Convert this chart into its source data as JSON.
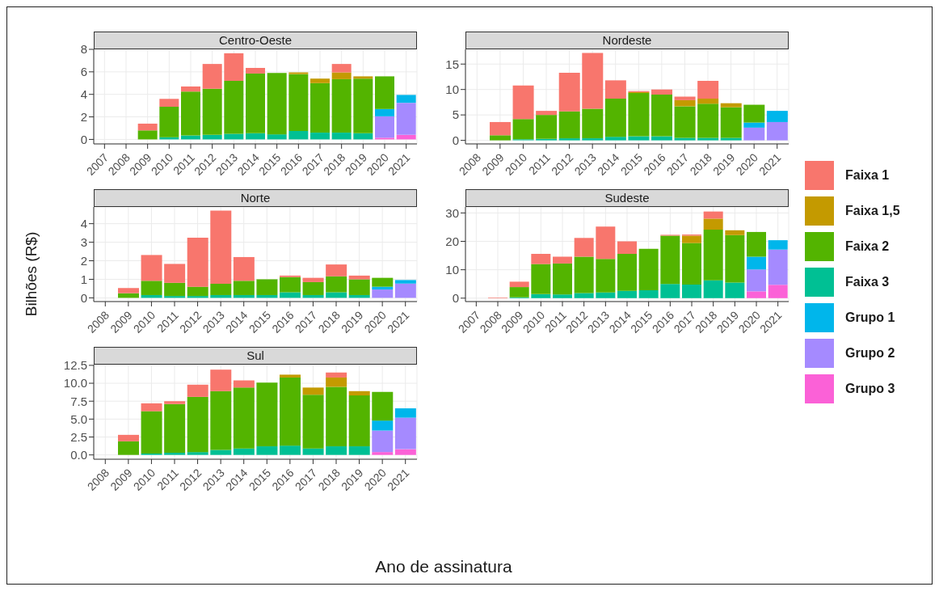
{
  "chart_data": [
    {
      "type": "bar",
      "title": "Centro-Oeste",
      "stacked": true,
      "grid": true,
      "legend": "right",
      "ylabel": "Bilhões (R$)",
      "categories": [
        "2007",
        "2008",
        "2009",
        "2010",
        "2011",
        "2012",
        "2013",
        "2014",
        "2015",
        "2016",
        "2017",
        "2018",
        "2019",
        "2020",
        "2021"
      ],
      "ylim": [
        -0.4,
        8
      ],
      "yticks": [
        0,
        2,
        4,
        6,
        8
      ],
      "series": [
        {
          "name": "Grupo 3",
          "color": "#fb61d7",
          "values": [
            null,
            null,
            null,
            null,
            null,
            null,
            null,
            null,
            null,
            null,
            null,
            null,
            null,
            0.15,
            0.4
          ]
        },
        {
          "name": "Grupo 2",
          "color": "#a58aff",
          "values": [
            null,
            null,
            null,
            null,
            null,
            null,
            null,
            null,
            null,
            null,
            null,
            null,
            null,
            1.9,
            2.85
          ]
        },
        {
          "name": "Grupo 1",
          "color": "#00b6eb",
          "values": [
            null,
            null,
            null,
            null,
            null,
            null,
            null,
            null,
            null,
            null,
            null,
            null,
            null,
            0.65,
            0.7
          ]
        },
        {
          "name": "Faixa 3",
          "color": "#00c094",
          "values": [
            null,
            null,
            null,
            0.2,
            0.35,
            0.4,
            0.5,
            0.55,
            0.45,
            0.75,
            0.6,
            0.6,
            0.55,
            null,
            null
          ]
        },
        {
          "name": "Faixa 2",
          "color": "#53b400",
          "values": [
            null,
            null,
            0.8,
            2.7,
            3.9,
            4.1,
            4.7,
            5.3,
            5.45,
            5.05,
            4.4,
            4.75,
            4.85,
            2.9,
            null
          ]
        },
        {
          "name": "Faixa 1,5",
          "color": "#c49a00",
          "values": [
            null,
            null,
            null,
            null,
            null,
            null,
            null,
            null,
            null,
            0.15,
            0.4,
            0.6,
            0.2,
            null,
            null
          ]
        },
        {
          "name": "Faixa 1",
          "color": "#f8766d",
          "values": [
            null,
            null,
            0.6,
            0.7,
            0.45,
            2.2,
            2.45,
            0.5,
            null,
            null,
            null,
            0.75,
            null,
            null,
            null
          ]
        }
      ]
    },
    {
      "type": "bar",
      "title": "Nordeste",
      "stacked": true,
      "grid": true,
      "categories": [
        "2008",
        "2009",
        "2010",
        "2011",
        "2012",
        "2013",
        "2014",
        "2015",
        "2016",
        "2017",
        "2018",
        "2019",
        "2020",
        "2021"
      ],
      "ylim": [
        -0.7,
        17.9
      ],
      "yticks": [
        0,
        5,
        10,
        15
      ],
      "series": [
        {
          "color": "#a58aff",
          "values": [
            null,
            null,
            null,
            null,
            null,
            null,
            null,
            null,
            null,
            null,
            null,
            null,
            2.5,
            3.6
          ]
        },
        {
          "color": "#00b6eb",
          "values": [
            null,
            null,
            null,
            null,
            null,
            null,
            null,
            null,
            null,
            null,
            null,
            null,
            1.0,
            2.2
          ]
        },
        {
          "color": "#00c094",
          "values": [
            null,
            null,
            0.2,
            0.3,
            0.4,
            0.4,
            0.7,
            0.8,
            0.8,
            0.5,
            0.5,
            0.5,
            null,
            null
          ]
        },
        {
          "color": "#53b400",
          "values": [
            null,
            1.0,
            4.0,
            4.7,
            5.3,
            5.8,
            7.5,
            8.5,
            8.2,
            6.2,
            6.7,
            6.0,
            3.5,
            null
          ]
        },
        {
          "color": "#c49a00",
          "values": [
            null,
            null,
            null,
            null,
            null,
            null,
            null,
            0.2,
            null,
            1.2,
            1.0,
            0.8,
            null,
            null
          ]
        },
        {
          "color": "#f8766d",
          "values": [
            null,
            2.6,
            6.6,
            0.8,
            7.6,
            11.0,
            3.6,
            0.2,
            1.0,
            0.7,
            3.5,
            null,
            null,
            null
          ]
        }
      ]
    },
    {
      "type": "bar",
      "title": "Norte",
      "stacked": true,
      "grid": true,
      "categories": [
        "2008",
        "2009",
        "2010",
        "2011",
        "2012",
        "2013",
        "2014",
        "2015",
        "2016",
        "2017",
        "2018",
        "2019",
        "2020",
        "2021"
      ],
      "ylim": [
        -0.2,
        4.9
      ],
      "yticks": [
        0,
        1,
        2,
        3,
        4
      ],
      "series": [
        {
          "color": "#a58aff",
          "values": [
            null,
            null,
            null,
            null,
            null,
            null,
            null,
            null,
            null,
            null,
            null,
            null,
            0.45,
            0.77
          ]
        },
        {
          "color": "#00b6eb",
          "values": [
            null,
            null,
            null,
            null,
            null,
            null,
            null,
            null,
            null,
            null,
            null,
            null,
            0.15,
            0.19
          ]
        },
        {
          "color": "#00c094",
          "values": [
            null,
            null,
            0.15,
            0.1,
            0.1,
            0.15,
            0.15,
            0.15,
            0.3,
            0.15,
            0.3,
            0.15,
            null,
            null
          ]
        },
        {
          "color": "#53b400",
          "values": [
            null,
            0.25,
            0.77,
            0.71,
            0.5,
            0.61,
            0.77,
            0.85,
            0.82,
            0.7,
            0.86,
            0.85,
            0.48,
            null
          ]
        },
        {
          "color": "#f8766d",
          "values": [
            null,
            0.28,
            1.39,
            1.02,
            2.64,
            3.94,
            1.28,
            null,
            0.08,
            0.23,
            0.64,
            0.2,
            null,
            null
          ]
        }
      ]
    },
    {
      "type": "bar",
      "title": "Sudeste",
      "stacked": true,
      "grid": true,
      "categories": [
        "2007",
        "2008",
        "2009",
        "2010",
        "2011",
        "2012",
        "2013",
        "2014",
        "2015",
        "2016",
        "2017",
        "2018",
        "2019",
        "2020",
        "2021"
      ],
      "ylim": [
        -1.2,
        32.1
      ],
      "yticks": [
        0,
        10,
        20,
        30
      ],
      "series": [
        {
          "color": "#fb61d7",
          "values": [
            null,
            null,
            null,
            null,
            null,
            null,
            null,
            null,
            null,
            null,
            null,
            null,
            null,
            2.4,
            4.7
          ]
        },
        {
          "color": "#a58aff",
          "values": [
            null,
            null,
            null,
            null,
            null,
            null,
            null,
            null,
            null,
            null,
            null,
            null,
            null,
            7.7,
            12.4
          ]
        },
        {
          "color": "#00b6eb",
          "values": [
            null,
            null,
            null,
            null,
            null,
            null,
            null,
            null,
            null,
            null,
            null,
            null,
            null,
            4.5,
            3.3
          ]
        },
        {
          "color": "#00c094",
          "values": [
            null,
            null,
            0.3,
            1.4,
            1.3,
            1.8,
            2.0,
            2.6,
            2.8,
            5.0,
            4.8,
            6.3,
            5.5,
            null,
            null
          ]
        },
        {
          "color": "#53b400",
          "values": [
            null,
            null,
            3.6,
            10.6,
            10.9,
            12.8,
            11.8,
            13.0,
            14.6,
            17.0,
            14.6,
            17.8,
            16.7,
            8.7,
            null
          ]
        },
        {
          "color": "#c49a00",
          "values": [
            null,
            null,
            null,
            null,
            null,
            null,
            null,
            null,
            null,
            null,
            2.6,
            3.9,
            1.7,
            null,
            null
          ]
        },
        {
          "color": "#f8766d",
          "values": [
            null,
            0.2,
            1.9,
            3.6,
            2.4,
            6.6,
            11.4,
            4.4,
            null,
            0.3,
            0.4,
            2.5,
            null,
            null,
            null
          ]
        }
      ]
    },
    {
      "type": "bar",
      "title": "Sul",
      "stacked": true,
      "grid": true,
      "xlabel": "Ano de assinatura",
      "categories": [
        "2008",
        "2009",
        "2010",
        "2011",
        "2012",
        "2013",
        "2014",
        "2015",
        "2016",
        "2017",
        "2018",
        "2019",
        "2020",
        "2021"
      ],
      "ylim": [
        -0.6,
        12.6
      ],
      "yticks": [
        {
          "value": 0,
          "label": "0.0"
        },
        {
          "value": 2.5,
          "label": "2.5"
        },
        {
          "value": 5,
          "label": "5.0"
        },
        {
          "value": 7.5,
          "label": "7.5"
        },
        {
          "value": 10,
          "label": "10.0"
        },
        {
          "value": 12.5,
          "label": "12.5"
        }
      ],
      "series": [
        {
          "color": "#fb61d7",
          "values": [
            null,
            null,
            null,
            null,
            null,
            null,
            null,
            null,
            null,
            null,
            null,
            null,
            0.4,
            0.8
          ]
        },
        {
          "color": "#a58aff",
          "values": [
            null,
            null,
            null,
            null,
            null,
            null,
            null,
            null,
            null,
            null,
            null,
            null,
            3.0,
            4.4
          ]
        },
        {
          "color": "#00b6eb",
          "values": [
            null,
            null,
            null,
            null,
            null,
            null,
            null,
            null,
            null,
            null,
            null,
            null,
            1.4,
            1.3
          ]
        },
        {
          "color": "#00c094",
          "values": [
            null,
            null,
            0.2,
            0.3,
            0.4,
            0.7,
            0.9,
            1.2,
            1.3,
            0.9,
            1.2,
            1.2,
            null,
            null
          ]
        },
        {
          "color": "#53b400",
          "values": [
            null,
            1.9,
            5.9,
            6.8,
            7.7,
            8.2,
            8.5,
            8.9,
            9.5,
            7.5,
            8.3,
            7.1,
            4.0,
            null
          ]
        },
        {
          "color": "#c49a00",
          "values": [
            null,
            null,
            null,
            null,
            null,
            null,
            null,
            null,
            0.4,
            1.0,
            1.3,
            0.6,
            null,
            null
          ]
        },
        {
          "color": "#f8766d",
          "values": [
            null,
            0.9,
            1.1,
            0.4,
            1.7,
            3.0,
            1.0,
            null,
            null,
            null,
            0.7,
            null,
            null,
            null
          ]
        }
      ]
    }
  ]
}
